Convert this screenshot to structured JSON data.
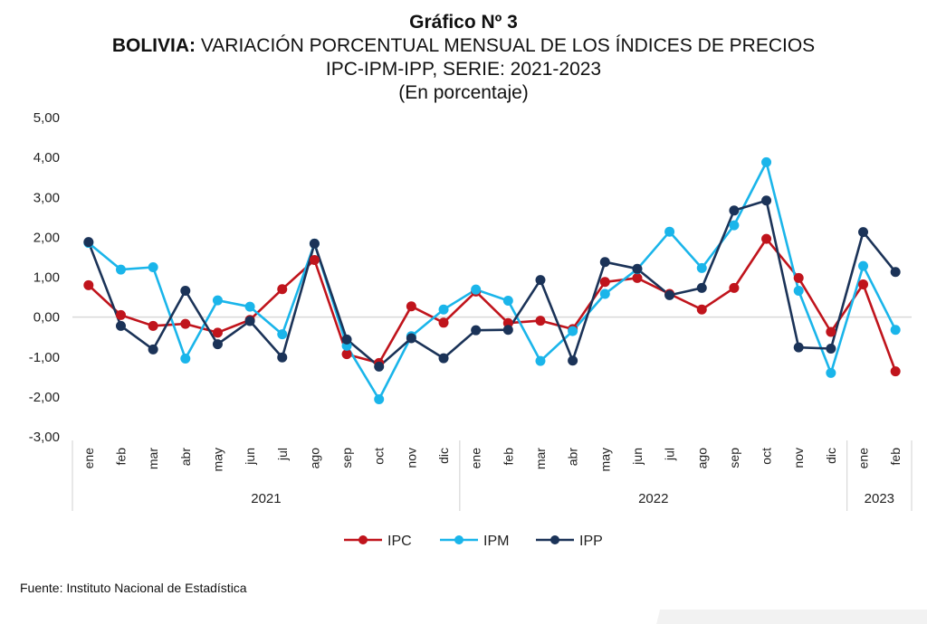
{
  "title": {
    "line1": "Gráfico Nº 3",
    "line2_bold": "BOLIVIA:",
    "line2_rest": " VARIACIÓN PORCENTUAL MENSUAL DE LOS ÍNDICES DE PRECIOS",
    "line3": "IPC-IPM-IPP, SERIE: 2021-2023",
    "line4": "(En porcentaje)"
  },
  "source": "Fuente: Instituto Nacional de Estadística",
  "chart_data": {
    "type": "line",
    "ylim": [
      -3,
      5
    ],
    "yticks": [
      "5,00",
      "4,00",
      "3,00",
      "2,00",
      "1,00",
      "0,00",
      "-1,00",
      "-2,00",
      "-3,00"
    ],
    "categories": [
      "ene",
      "feb",
      "mar",
      "abr",
      "may",
      "jun",
      "jul",
      "ago",
      "sep",
      "oct",
      "nov",
      "dic",
      "ene",
      "feb",
      "mar",
      "abr",
      "may",
      "jun",
      "jul",
      "ago",
      "sep",
      "oct",
      "nov",
      "dic",
      "ene",
      "feb"
    ],
    "year_groups": [
      {
        "label": "2021",
        "count": 12
      },
      {
        "label": "2022",
        "count": 12
      },
      {
        "label": "2023",
        "count": 2
      }
    ],
    "legend_position": "bottom",
    "zero_line": true,
    "series": [
      {
        "name": "IPC",
        "color": "#c0141c",
        "values": [
          0.8,
          0.05,
          -0.22,
          -0.17,
          -0.39,
          -0.07,
          0.7,
          1.43,
          -0.93,
          -1.15,
          0.27,
          -0.14,
          0.64,
          -0.15,
          -0.09,
          -0.3,
          0.88,
          0.98,
          0.58,
          0.19,
          0.73,
          1.96,
          0.98,
          -0.37,
          0.82,
          -1.36
        ]
      },
      {
        "name": "IPM",
        "color": "#1ab5ea",
        "values": [
          1.86,
          1.19,
          1.25,
          -1.04,
          0.42,
          0.26,
          -0.43,
          1.84,
          -0.72,
          -2.06,
          -0.48,
          0.19,
          0.69,
          0.41,
          -1.1,
          -0.35,
          0.58,
          1.2,
          2.14,
          1.23,
          2.3,
          3.88,
          0.66,
          -1.4,
          1.28,
          -0.32
        ]
      },
      {
        "name": "IPP",
        "color": "#1b3358",
        "values": [
          1.88,
          -0.22,
          -0.81,
          0.66,
          -0.68,
          -0.1,
          -1.01,
          1.84,
          -0.56,
          -1.24,
          -0.53,
          -1.03,
          -0.33,
          -0.32,
          0.93,
          -1.09,
          1.38,
          1.21,
          0.55,
          0.73,
          2.67,
          2.92,
          -0.76,
          -0.79,
          2.13,
          1.13
        ]
      }
    ]
  }
}
